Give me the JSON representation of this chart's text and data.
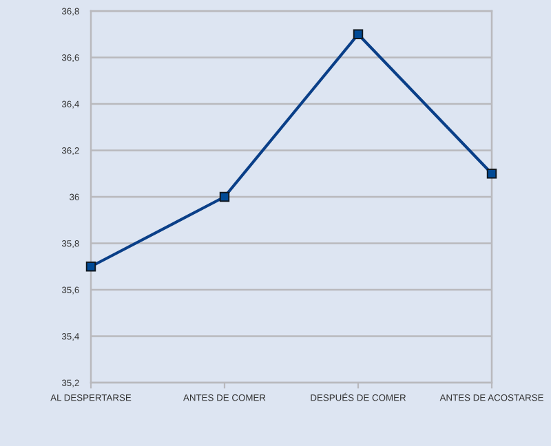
{
  "chart_data": {
    "type": "line",
    "categories": [
      "AL DESPERTARSE",
      "ANTES DE COMER",
      "DESPUÉS DE COMER",
      "ANTES DE ACOSTARSE"
    ],
    "series": [
      {
        "color": "#0a3f88",
        "values": [
          35.7,
          36.0,
          36.7,
          36.1
        ]
      }
    ],
    "ylim": [
      35.2,
      36.8
    ],
    "yticks": [
      {
        "value": 35.2,
        "label": "35,2"
      },
      {
        "value": 35.4,
        "label": "35,4"
      },
      {
        "value": 35.6,
        "label": "35,6"
      },
      {
        "value": 35.8,
        "label": "35,8"
      },
      36,
      {
        "value": 36.2,
        "label": "36,2"
      },
      {
        "value": 36.4,
        "label": "36,4"
      },
      {
        "value": 36.6,
        "label": "36,6"
      },
      {
        "value": 36.8,
        "label": "36,8"
      }
    ],
    "grid": "y",
    "marker": "square",
    "line_style": "solid"
  }
}
